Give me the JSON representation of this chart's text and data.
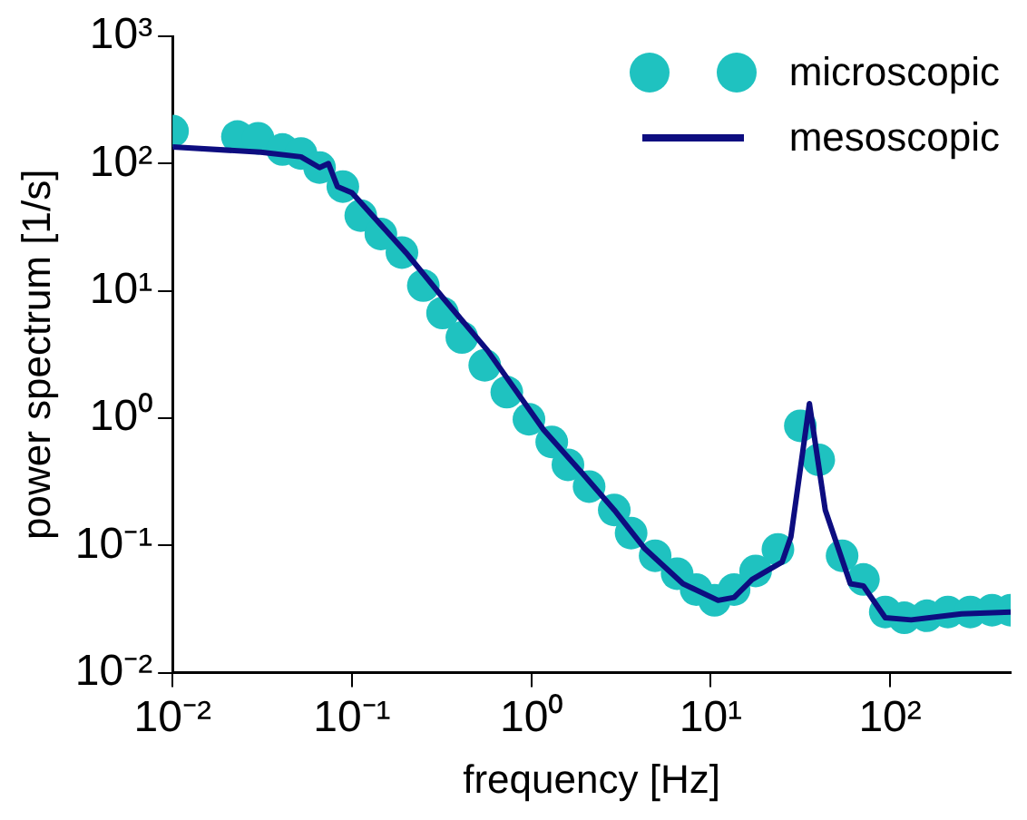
{
  "chart_data": {
    "type": "scatter",
    "xlabel": "frequency [Hz]",
    "ylabel": "power spectrum [1/s]",
    "log": "xy",
    "grid": false,
    "legend": "top right",
    "xlim": [
      0.01,
      470
    ],
    "ylim": [
      0.01,
      1000
    ],
    "xticks": [
      {
        "value": 0.01,
        "label": "10⁻²"
      },
      {
        "value": 0.1,
        "label": "10⁻¹"
      },
      {
        "value": 1,
        "label": "10⁰"
      },
      {
        "value": 10,
        "label": "10¹"
      },
      {
        "value": 100,
        "label": "10²"
      }
    ],
    "yticks": [
      {
        "value": 0.01,
        "label": "10⁻²"
      },
      {
        "value": 0.1,
        "label": "10⁻¹"
      },
      {
        "value": 1,
        "label": "10⁰"
      },
      {
        "value": 10,
        "label": "10¹"
      },
      {
        "value": 100,
        "label": "10²"
      },
      {
        "value": 1000,
        "label": "10³"
      }
    ],
    "series": [
      {
        "name": "microscopic",
        "type": "scatter",
        "marker": "circle",
        "color": "#1fc2c0",
        "x": [
          0.01,
          0.023,
          0.03,
          0.041,
          0.052,
          0.066,
          0.089,
          0.112,
          0.145,
          0.19,
          0.25,
          0.32,
          0.41,
          0.55,
          0.73,
          0.97,
          1.3,
          1.6,
          2.1,
          2.9,
          3.6,
          4.9,
          6.5,
          8.3,
          10.5,
          13.5,
          17.8,
          23.7,
          31.6,
          40,
          54,
          71,
          94,
          120,
          160,
          210,
          280,
          370,
          470
        ],
        "values": [
          180,
          163,
          158,
          129,
          120,
          93,
          66,
          39,
          28,
          20,
          11,
          6.7,
          4.3,
          2.6,
          1.6,
          0.98,
          0.65,
          0.43,
          0.29,
          0.19,
          0.125,
          0.083,
          0.06,
          0.045,
          0.037,
          0.045,
          0.063,
          0.093,
          0.87,
          0.47,
          0.083,
          0.054,
          0.03,
          0.027,
          0.028,
          0.03,
          0.03,
          0.031,
          0.031
        ]
      },
      {
        "name": "mesoscopic",
        "type": "line",
        "marker": "none",
        "line_style": "solid",
        "color": "#0d0d80",
        "x": [
          0.01,
          0.031,
          0.052,
          0.066,
          0.074,
          0.083,
          0.1,
          0.145,
          0.2,
          0.32,
          0.57,
          1.17,
          1.92,
          2.9,
          4.3,
          7,
          11,
          13.5,
          17,
          25,
          28,
          35.5,
          43.5,
          60,
          71,
          94,
          131,
          250,
          470
        ],
        "values": [
          135,
          123,
          113,
          93,
          100,
          66,
          59,
          33,
          20,
          8.9,
          3.4,
          0.81,
          0.37,
          0.19,
          0.094,
          0.05,
          0.037,
          0.039,
          0.054,
          0.074,
          0.117,
          1.3,
          0.19,
          0.05,
          0.048,
          0.027,
          0.026,
          0.029,
          0.03
        ]
      }
    ]
  }
}
